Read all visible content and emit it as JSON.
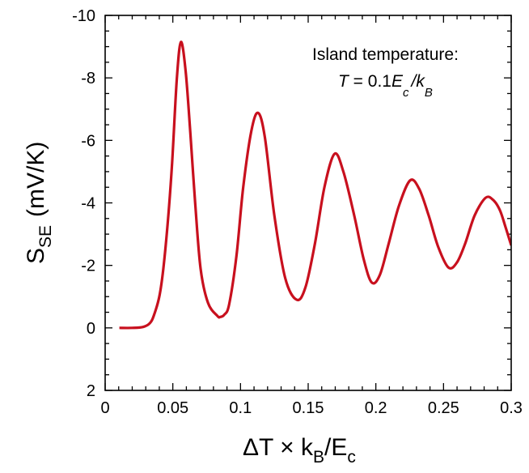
{
  "chart_data": {
    "type": "line",
    "title": "",
    "xlabel": {
      "main": "ΔT × k",
      "sub1": "B",
      "mid": "/E",
      "sub2": "c"
    },
    "ylabel": {
      "main": "S",
      "sub": "SE",
      "unit": "(mV/K)"
    },
    "xlim": [
      0,
      0.3
    ],
    "ylim": [
      2,
      -10
    ],
    "y_inverted": true,
    "xticks": [
      "0",
      "0.05",
      "0.1",
      "0.15",
      "0.2",
      "0.25",
      "0.3"
    ],
    "xtick_values": [
      0,
      0.05,
      0.1,
      0.15,
      0.2,
      0.25,
      0.3
    ],
    "yticks": [
      "-10",
      "-8",
      "-6",
      "-4",
      "-2",
      "0",
      "2"
    ],
    "ytick_values": [
      -10,
      -8,
      -6,
      -4,
      -2,
      0,
      2
    ],
    "x_minor_step": 0.01,
    "y_minor_step": 0.5,
    "grid": false,
    "annotation": {
      "line1": "Island temperature:",
      "line2_a": "T",
      "line2_b": " = 0.1",
      "line2_c": "E",
      "line2_sub1": "c",
      "line2_d": "/k",
      "line2_sub2": "B"
    },
    "series": [
      {
        "name": "S_SE",
        "color": "#c8101e",
        "x": [
          0.0105,
          0.02,
          0.028,
          0.033,
          0.036,
          0.04,
          0.043,
          0.0465,
          0.0495,
          0.053,
          0.056,
          0.0595,
          0.063,
          0.0665,
          0.0705,
          0.076,
          0.083,
          0.085,
          0.088,
          0.0916,
          0.097,
          0.102,
          0.108,
          0.113,
          0.118,
          0.125,
          0.133,
          0.1415,
          0.148,
          0.155,
          0.162,
          0.1695,
          0.176,
          0.184,
          0.191,
          0.197,
          0.203,
          0.2095,
          0.217,
          0.2253,
          0.232,
          0.239,
          0.246,
          0.2537,
          0.26,
          0.266,
          0.273,
          0.281,
          0.2865,
          0.2916,
          0.296,
          0.3
        ],
        "y": [
          0,
          0,
          -0.03,
          -0.15,
          -0.4,
          -1.0,
          -1.9,
          -3.5,
          -5.3,
          -8.0,
          -9.15,
          -8.2,
          -6.2,
          -4.0,
          -1.9,
          -0.8,
          -0.38,
          -0.35,
          -0.42,
          -0.75,
          -2.3,
          -4.5,
          -6.3,
          -6.88,
          -6.1,
          -3.6,
          -1.6,
          -0.9,
          -1.3,
          -2.7,
          -4.5,
          -5.57,
          -5.0,
          -3.6,
          -2.2,
          -1.45,
          -1.7,
          -2.7,
          -3.9,
          -4.72,
          -4.45,
          -3.6,
          -2.6,
          -1.93,
          -2.1,
          -2.7,
          -3.6,
          -4.16,
          -4.1,
          -3.77,
          -3.2,
          -2.64
        ]
      }
    ]
  }
}
